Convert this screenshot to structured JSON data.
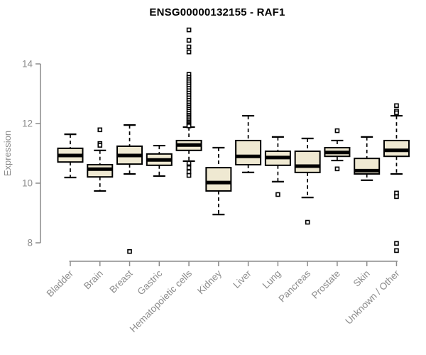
{
  "title": "ENSG00000132155 - RAF1",
  "chart_data": {
    "type": "boxplot",
    "title": "ENSG00000132155 - RAF1",
    "xlabel": "",
    "ylabel": "Expression",
    "y_ticks": [
      8,
      10,
      12,
      14
    ],
    "ylim": [
      7.4,
      15.3
    ],
    "grid": false,
    "legend": "none",
    "colors": {
      "box_fill": "#EFE9D2",
      "box_stroke": "#000000",
      "median": "#000000",
      "whisker": "#000000",
      "outlier_stroke": "#000000",
      "outlier_fill": "#ffffff",
      "axis": "#8c8c8c",
      "tick_label": "#8c8c8c",
      "title_color": "#000000"
    },
    "categories": [
      "Bladder",
      "Brain",
      "Breast",
      "Gastric",
      "Hematopoietic cells",
      "Kidney",
      "Liver",
      "Lung",
      "Pancreas",
      "Prostate",
      "Skin",
      "Unknown / Other"
    ],
    "series": [
      {
        "name": "Bladder",
        "low": 10.19,
        "q1": 10.71,
        "median": 10.93,
        "q3": 11.17,
        "high": 11.64,
        "outliers": []
      },
      {
        "name": "Brain",
        "low": 9.74,
        "q1": 10.21,
        "median": 10.47,
        "q3": 10.62,
        "high": 11.1,
        "outliers": [
          11.79,
          11.33,
          11.27
        ]
      },
      {
        "name": "Breast",
        "low": 10.31,
        "q1": 10.64,
        "median": 10.93,
        "q3": 11.24,
        "high": 11.95,
        "outliers": [
          7.71
        ]
      },
      {
        "name": "Gastric",
        "low": 10.24,
        "q1": 10.6,
        "median": 10.78,
        "q3": 10.98,
        "high": 11.26,
        "outliers": []
      },
      {
        "name": "Hematopoietic cells",
        "low": 10.74,
        "q1": 11.1,
        "median": 11.28,
        "q3": 11.43,
        "high": 11.88,
        "outliers": [
          15.14,
          14.79,
          14.57,
          14.4,
          13.65,
          13.55,
          13.47,
          13.4,
          13.33,
          13.26,
          13.18,
          13.1,
          13.02,
          12.94,
          12.86,
          12.78,
          12.7,
          12.62,
          12.55,
          12.48,
          12.41,
          12.34,
          12.28,
          12.22,
          12.16,
          12.1,
          12.05,
          12.0,
          11.96,
          11.92,
          10.67,
          10.52,
          10.38,
          10.26
        ]
      },
      {
        "name": "Kidney",
        "low": 8.95,
        "q1": 9.74,
        "median": 10.02,
        "q3": 10.52,
        "high": 11.19,
        "outliers": []
      },
      {
        "name": "Liver",
        "low": 10.36,
        "q1": 10.62,
        "median": 10.9,
        "q3": 11.43,
        "high": 12.26,
        "outliers": []
      },
      {
        "name": "Lung",
        "low": 10.05,
        "q1": 10.6,
        "median": 10.86,
        "q3": 11.07,
        "high": 11.55,
        "outliers": [
          9.62
        ]
      },
      {
        "name": "Pancreas",
        "low": 9.52,
        "q1": 10.36,
        "median": 10.57,
        "q3": 11.07,
        "high": 11.5,
        "outliers": [
          8.69
        ]
      },
      {
        "name": "Prostate",
        "low": 10.76,
        "q1": 10.9,
        "median": 11.03,
        "q3": 11.19,
        "high": 11.43,
        "outliers": [
          11.76,
          10.48
        ]
      },
      {
        "name": "Skin",
        "low": 10.1,
        "q1": 10.31,
        "median": 10.42,
        "q3": 10.83,
        "high": 11.55,
        "outliers": []
      },
      {
        "name": "Unknown / Other",
        "low": 10.31,
        "q1": 10.9,
        "median": 11.1,
        "q3": 11.43,
        "high": 12.26,
        "outliers": [
          12.6,
          12.42,
          12.36,
          9.67,
          9.55,
          7.98,
          7.74
        ]
      }
    ]
  }
}
